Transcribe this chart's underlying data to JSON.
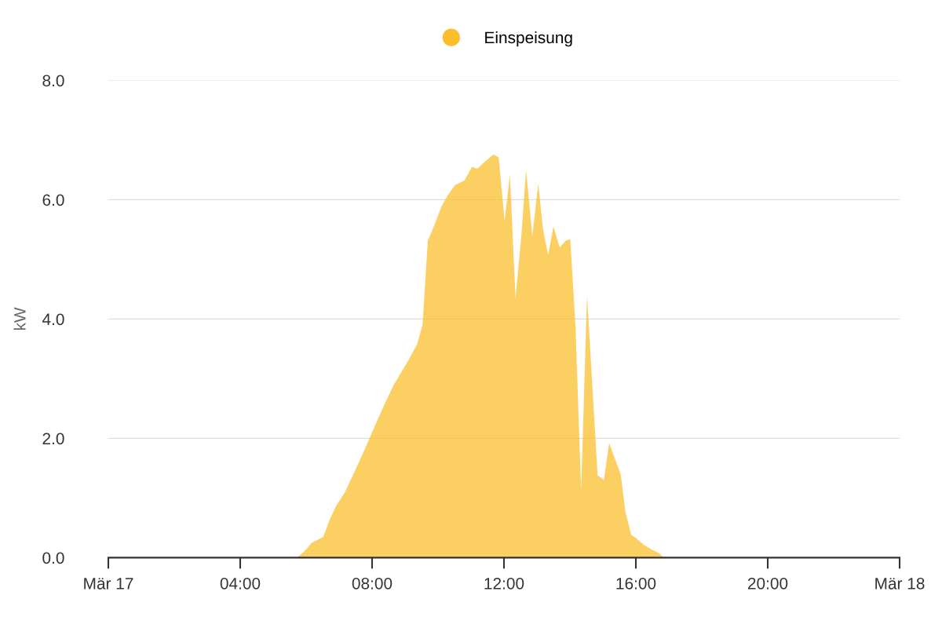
{
  "chart_data": {
    "type": "area",
    "ylabel": "kW",
    "x": [
      0,
      5.71,
      5.94,
      6.17,
      6.36,
      6.52,
      6.71,
      6.91,
      7.17,
      7.45,
      7.79,
      8.07,
      8.37,
      8.65,
      9.06,
      9.36,
      9.53,
      9.69,
      9.88,
      10.1,
      10.29,
      10.52,
      10.8,
      11.03,
      11.19,
      11.45,
      11.68,
      11.84,
      12.02,
      12.18,
      12.35,
      12.53,
      12.67,
      12.86,
      13.04,
      13.18,
      13.34,
      13.5,
      13.69,
      13.87,
      14.01,
      14.17,
      14.34,
      14.52,
      14.84,
      15.03,
      15.19,
      15.54,
      15.68,
      15.86,
      16.0,
      16.23,
      16.46,
      16.69,
      16.86,
      24
    ],
    "series": [
      {
        "name": "Einspeisung",
        "color": "#fbbf2d",
        "values": [
          0,
          0,
          0.1,
          0.25,
          0.3,
          0.35,
          0.63,
          0.87,
          1.09,
          1.42,
          1.83,
          2.19,
          2.56,
          2.89,
          3.27,
          3.57,
          3.9,
          5.31,
          5.56,
          5.88,
          6.07,
          6.25,
          6.32,
          6.55,
          6.52,
          6.65,
          6.76,
          6.71,
          5.64,
          6.42,
          4.35,
          5.41,
          6.5,
          5.39,
          6.27,
          5.52,
          5.07,
          5.55,
          5.2,
          5.31,
          5.34,
          3.87,
          1.13,
          4.39,
          1.38,
          1.3,
          1.92,
          1.4,
          0.78,
          0.38,
          0.33,
          0.22,
          0.14,
          0.08,
          0,
          0
        ]
      }
    ],
    "xlim": [
      0,
      24
    ],
    "xticks": [
      {
        "value": 0,
        "label": "Mär 17"
      },
      {
        "value": 4,
        "label": "04:00"
      },
      {
        "value": 8,
        "label": "08:00"
      },
      {
        "value": 12,
        "label": "12:00"
      },
      {
        "value": 16,
        "label": "16:00"
      },
      {
        "value": 20,
        "label": "20:00"
      },
      {
        "value": 24,
        "label": "Mär 18"
      }
    ],
    "ylim": [
      0,
      8
    ],
    "yticks": [
      {
        "value": 0,
        "label": "0.0"
      },
      {
        "value": 2,
        "label": "2.0"
      },
      {
        "value": 4,
        "label": "4.0"
      },
      {
        "value": 6,
        "label": "6.0"
      },
      {
        "value": 8,
        "label": "8.0"
      }
    ],
    "grid": "y",
    "legend": "top"
  }
}
